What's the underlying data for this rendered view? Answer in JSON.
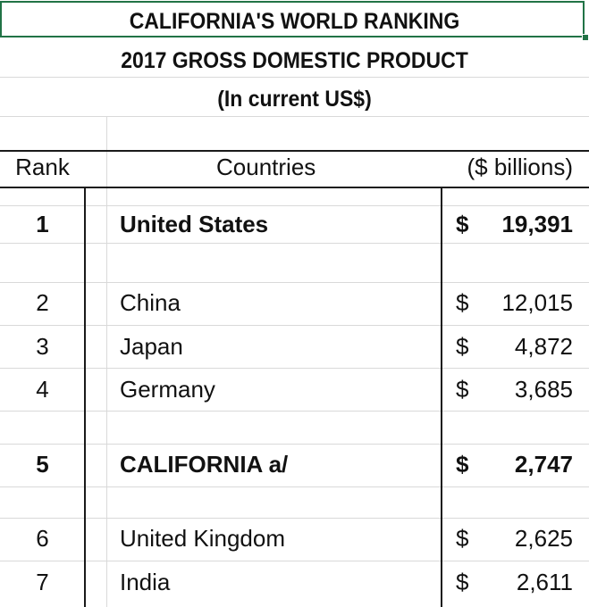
{
  "title": {
    "line1": "CALIFORNIA'S WORLD RANKING",
    "line2": "2017 GROSS DOMESTIC PRODUCT",
    "line3": "(In current US$)"
  },
  "table": {
    "headers": {
      "rank": "Rank",
      "country": "Countries",
      "value": "($ billions)"
    },
    "currency_symbol": "$",
    "rows": [
      {
        "rank": "1",
        "country": "United States",
        "value": "19,391",
        "bold": true
      },
      {
        "rank": "2",
        "country": "China",
        "value": "12,015",
        "bold": false
      },
      {
        "rank": "3",
        "country": "Japan",
        "value": "4,872",
        "bold": false
      },
      {
        "rank": "4",
        "country": "Germany",
        "value": "3,685",
        "bold": false
      },
      {
        "rank": "5",
        "country": "CALIFORNIA a/",
        "value": "2,747",
        "bold": true
      },
      {
        "rank": "6",
        "country": "United Kingdom",
        "value": "2,625",
        "bold": false
      },
      {
        "rank": "7",
        "country": "India",
        "value": "2,611",
        "bold": false
      }
    ]
  },
  "colors": {
    "selection": "#217346",
    "gridline": "#d9d9d9",
    "border": "#1a1a1a"
  }
}
